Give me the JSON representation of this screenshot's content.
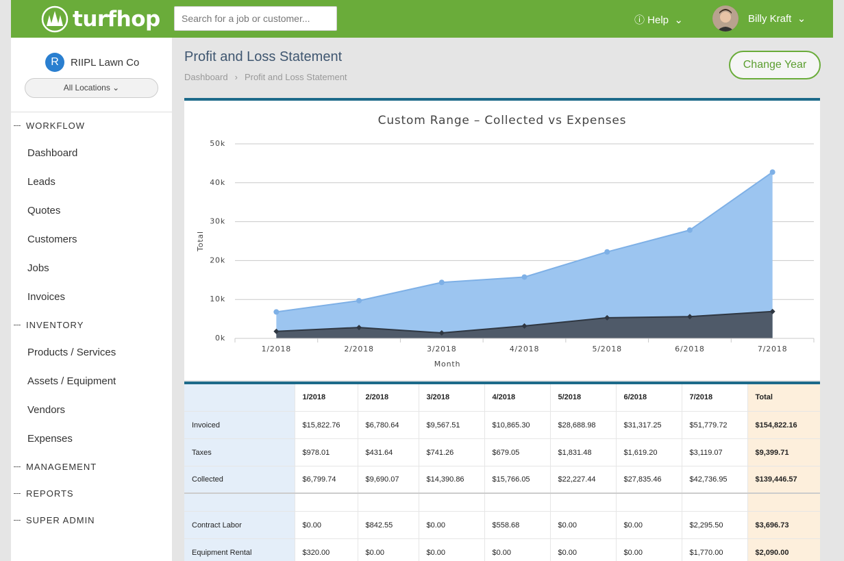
{
  "header": {
    "logo": "turfhop",
    "search_placeholder": "Search for a job or customer...",
    "help": "Help",
    "user": "Billy Kraft"
  },
  "sidebar": {
    "company_initial": "R",
    "company": "RIIPL Lawn Co",
    "location": "All Locations",
    "sections": [
      {
        "title": "WORKFLOW",
        "items": [
          "Dashboard",
          "Leads",
          "Quotes",
          "Customers",
          "Jobs",
          "Invoices"
        ]
      },
      {
        "title": "INVENTORY",
        "items": [
          "Products / Services",
          "Assets / Equipment",
          "Vendors",
          "Expenses"
        ]
      },
      {
        "title": "MANAGEMENT",
        "items": []
      },
      {
        "title": "REPORTS",
        "items": []
      },
      {
        "title": "SUPER ADMIN",
        "items": []
      }
    ]
  },
  "page": {
    "title": "Profit and Loss Statement",
    "breadcrumb": [
      "Dashboard",
      "Profit and Loss Statement"
    ],
    "button": "Change Year"
  },
  "chart_data": {
    "type": "area",
    "title": "Custom Range – Collected vs Expenses",
    "x_label": "Month",
    "y_label": "Total",
    "categories": [
      "1/2018",
      "2/2018",
      "3/2018",
      "4/2018",
      "5/2018",
      "6/2018",
      "7/2018"
    ],
    "series": [
      {
        "color": "#9cc5f0",
        "line_color": "#7eb0e6",
        "marker": "circle",
        "values": [
          6799.74,
          9690.07,
          14390.86,
          15766.05,
          22227.44,
          27835.46,
          42736.95
        ]
      },
      {
        "color": "#4f5a69",
        "line_color": "#2f3742",
        "marker": "diamond",
        "values": [
          1800,
          2800,
          1400,
          3200,
          5300,
          5600,
          6900
        ]
      }
    ],
    "ylim": [
      0,
      50000
    ],
    "yticks": [
      {
        "value": 0,
        "label": "0k"
      },
      {
        "value": 10000,
        "label": "10k"
      },
      {
        "value": 20000,
        "label": "20k"
      },
      {
        "value": 30000,
        "label": "30k"
      },
      {
        "value": 40000,
        "label": "40k"
      },
      {
        "value": 50000,
        "label": "50k"
      }
    ],
    "grid": true
  },
  "table": {
    "header": [
      "1/2018",
      "2/2018",
      "3/2018",
      "4/2018",
      "5/2018",
      "6/2018",
      "7/2018",
      "Total"
    ],
    "sections": [
      [
        [
          "Invoiced",
          "$15,822.76",
          "$6,780.64",
          "$9,567.51",
          "$10,865.30",
          "$28,688.98",
          "$31,317.25",
          "$51,779.72",
          "$154,822.16"
        ],
        [
          "Taxes",
          "$978.01",
          "$431.64",
          "$741.26",
          "$679.05",
          "$1,831.48",
          "$1,619.20",
          "$3,119.07",
          "$9,399.71"
        ],
        [
          "Collected",
          "$6,799.74",
          "$9,690.07",
          "$14,390.86",
          "$15,766.05",
          "$22,227.44",
          "$27,835.46",
          "$42,736.95",
          "$139,446.57"
        ]
      ],
      [
        [
          "Contract Labor",
          "$0.00",
          "$842.55",
          "$0.00",
          "$558.68",
          "$0.00",
          "$0.00",
          "$2,295.50",
          "$3,696.73"
        ],
        [
          "Equipment Rental",
          "$320.00",
          "$0.00",
          "$0.00",
          "$0.00",
          "$0.00",
          "$0.00",
          "$1,770.00",
          "$2,090.00"
        ]
      ]
    ]
  }
}
